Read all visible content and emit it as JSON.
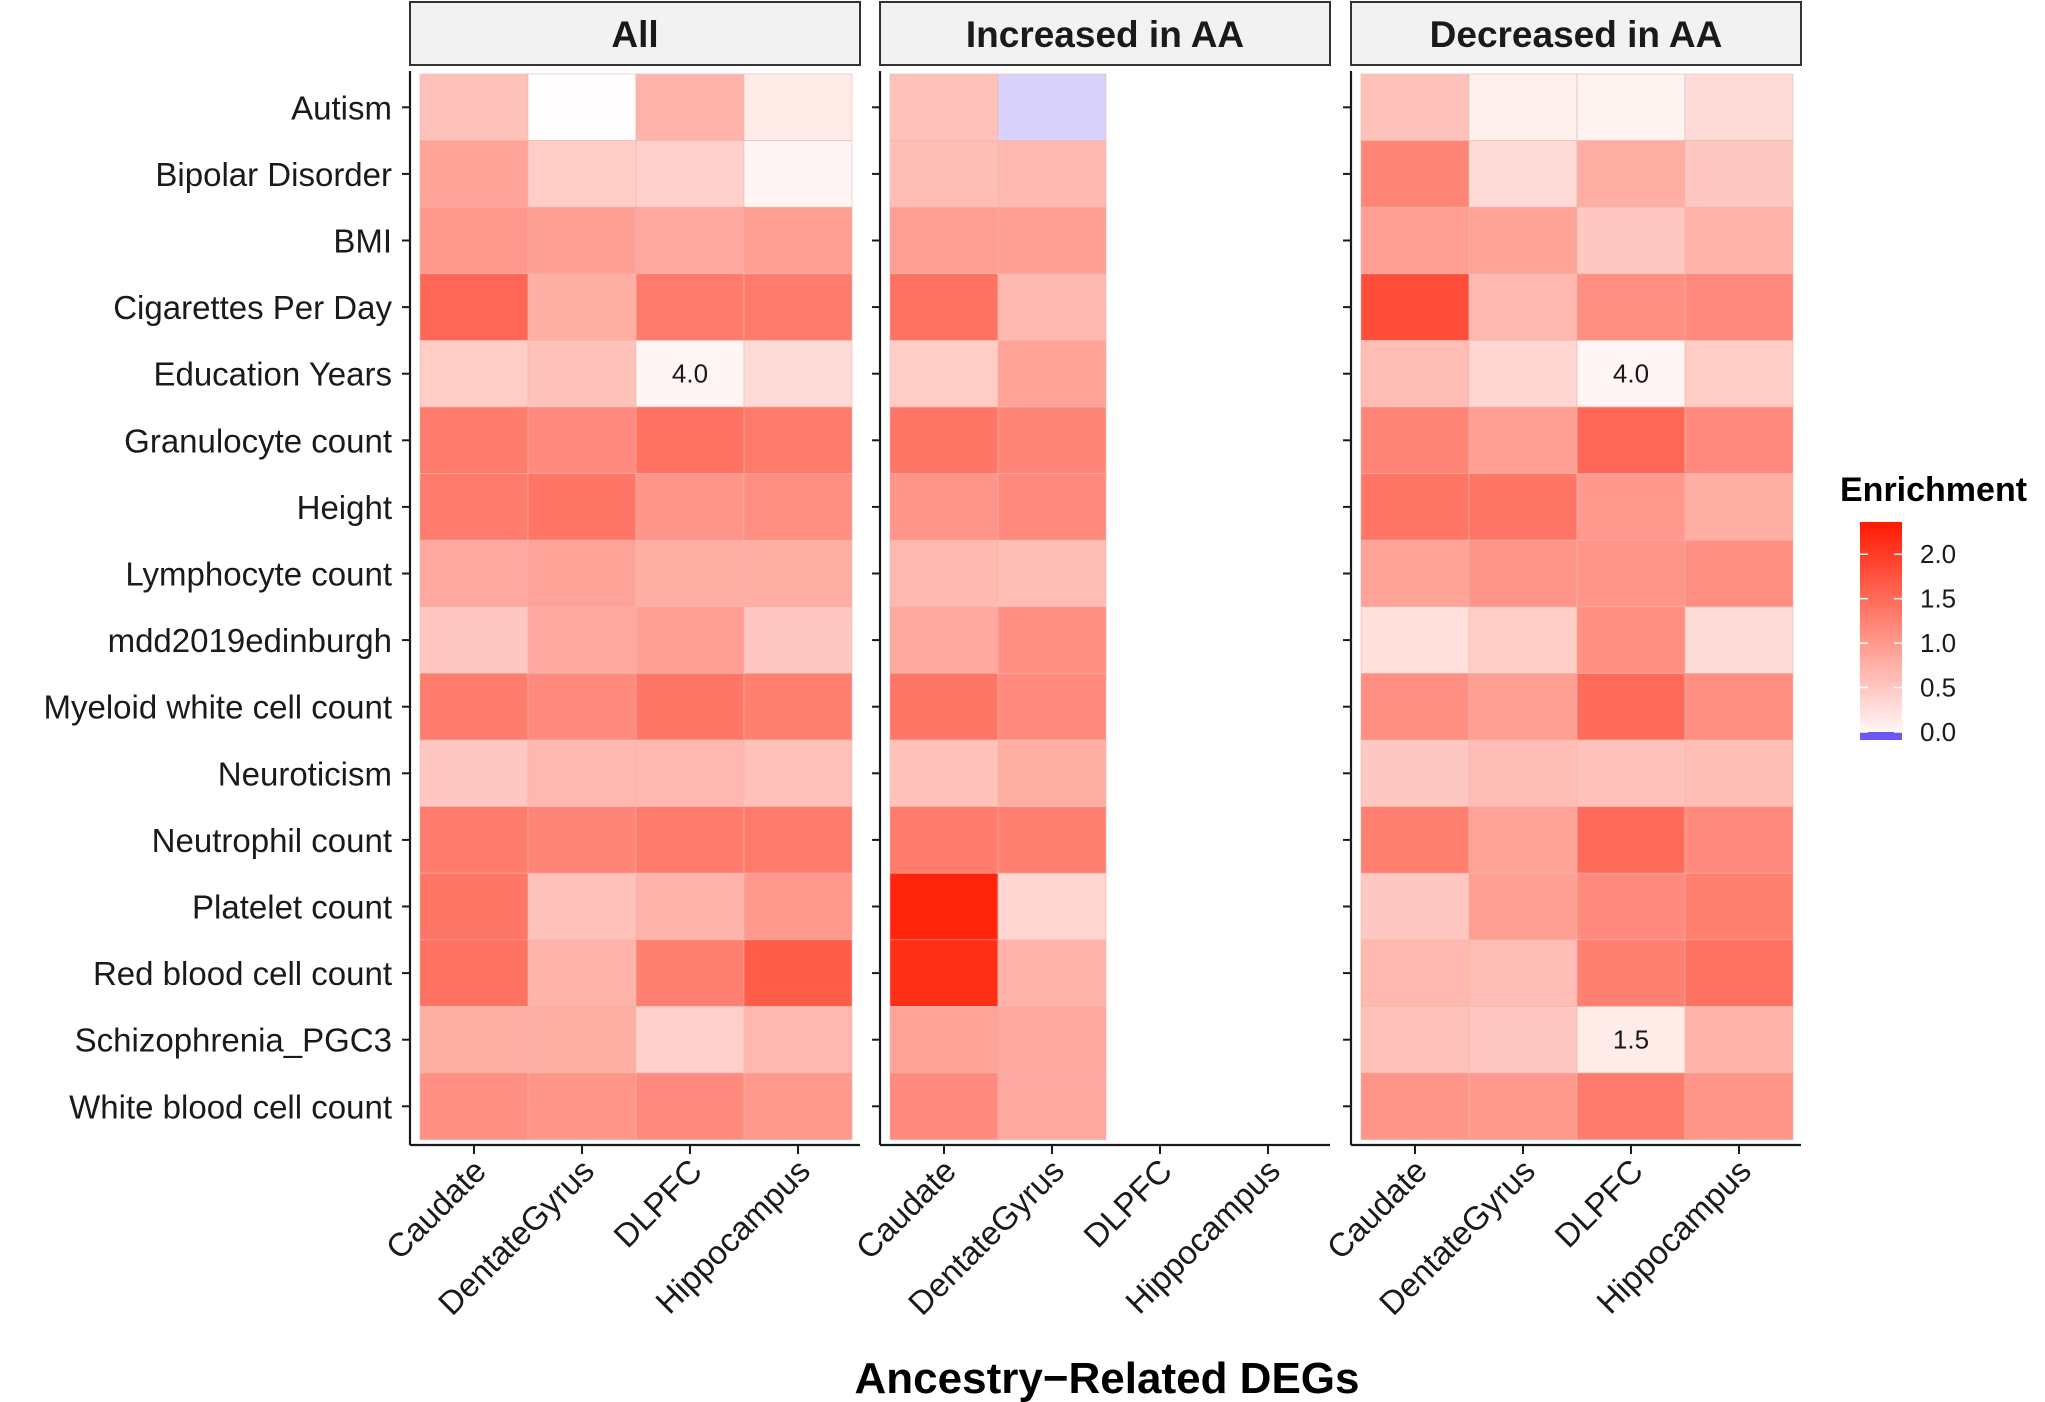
{
  "chart_data": {
    "type": "heatmap",
    "xlabel": "Ancestry−Related DEGs",
    "ylabel": "",
    "legend": {
      "title": "Enrichment",
      "ticks": [
        "2.0",
        "1.5",
        "1.0",
        "0.5",
        "0.0"
      ],
      "tick_values": [
        2.0,
        1.5,
        1.0,
        0.5,
        0.0
      ],
      "range": [
        0.0,
        2.25
      ],
      "colors": {
        "low": "#3b1ff5",
        "mid": "#ffffff",
        "high": "#ff1a00"
      }
    },
    "rows": [
      "Autism",
      "Bipolar Disorder",
      "BMI",
      "Cigarettes Per Day",
      "Education Years",
      "Granulocyte count",
      "Height",
      "Lymphocyte count",
      "mdd2019edinburgh",
      "Myeloid white cell count",
      "Neuroticism",
      "Neutrophil count",
      "Platelet count",
      "Red blood cell count",
      "Schizophrenia_PGC3",
      "White blood cell count"
    ],
    "columns": [
      "Caudate",
      "DentateGyrus",
      "DLPFC",
      "Hippocampus"
    ],
    "panels": [
      {
        "title": "All",
        "values": [
          [
            0.6,
            0.02,
            0.75,
            0.2
          ],
          [
            0.9,
            0.5,
            0.45,
            0.1
          ],
          [
            1.0,
            0.95,
            0.85,
            0.95
          ],
          [
            1.5,
            0.8,
            1.3,
            1.3
          ],
          [
            0.5,
            0.6,
            0.1,
            0.35
          ],
          [
            1.3,
            1.15,
            1.4,
            1.3
          ],
          [
            1.3,
            1.35,
            1.05,
            1.1
          ],
          [
            0.85,
            0.9,
            0.8,
            0.8
          ],
          [
            0.55,
            0.85,
            0.95,
            0.55
          ],
          [
            1.3,
            1.15,
            1.35,
            1.25
          ],
          [
            0.55,
            0.7,
            0.7,
            0.6
          ],
          [
            1.3,
            1.2,
            1.3,
            1.3
          ],
          [
            1.35,
            0.6,
            0.75,
            1.0
          ],
          [
            1.4,
            0.75,
            1.25,
            1.6
          ],
          [
            0.8,
            0.8,
            0.45,
            0.7
          ],
          [
            1.1,
            1.05,
            1.15,
            1.0
          ]
        ],
        "annotations": [
          {
            "row": 4,
            "col": 2,
            "text": "4.0"
          }
        ]
      },
      {
        "title": "Increased in AA",
        "values": [
          [
            0.6,
            -0.2,
            null,
            null
          ],
          [
            0.65,
            0.7,
            null,
            null
          ],
          [
            0.95,
            0.95,
            null,
            null
          ],
          [
            1.4,
            0.7,
            null,
            null
          ],
          [
            0.5,
            0.9,
            null,
            null
          ],
          [
            1.35,
            1.2,
            null,
            null
          ],
          [
            1.05,
            1.15,
            null,
            null
          ],
          [
            0.7,
            0.65,
            null,
            null
          ],
          [
            0.85,
            1.1,
            null,
            null
          ],
          [
            1.35,
            1.15,
            null,
            null
          ],
          [
            0.6,
            0.8,
            null,
            null
          ],
          [
            1.3,
            1.25,
            null,
            null
          ],
          [
            2.15,
            0.4,
            null,
            null
          ],
          [
            2.05,
            0.75,
            null,
            null
          ],
          [
            0.9,
            0.85,
            null,
            null
          ],
          [
            1.15,
            0.85,
            null,
            null
          ]
        ],
        "annotations": []
      },
      {
        "title": "Decreased in AA",
        "values": [
          [
            0.6,
            0.15,
            0.12,
            0.35
          ],
          [
            1.2,
            0.35,
            0.8,
            0.55
          ],
          [
            0.95,
            0.9,
            0.55,
            0.75
          ],
          [
            1.75,
            0.7,
            1.1,
            1.15
          ],
          [
            0.65,
            0.4,
            0.1,
            0.5
          ],
          [
            1.2,
            0.95,
            1.5,
            1.15
          ],
          [
            1.35,
            1.35,
            1.0,
            0.8
          ],
          [
            0.9,
            1.05,
            1.05,
            1.1
          ],
          [
            0.3,
            0.5,
            1.1,
            0.35
          ],
          [
            1.1,
            0.95,
            1.45,
            1.1
          ],
          [
            0.55,
            0.65,
            0.6,
            0.65
          ],
          [
            1.25,
            0.9,
            1.45,
            1.15
          ],
          [
            0.55,
            0.95,
            1.15,
            1.25
          ],
          [
            0.7,
            0.65,
            1.25,
            1.4
          ],
          [
            0.6,
            0.55,
            0.2,
            0.75
          ],
          [
            1.05,
            1.0,
            1.3,
            1.05
          ]
        ],
        "annotations": [
          {
            "row": 4,
            "col": 2,
            "text": "4.0"
          },
          {
            "row": 14,
            "col": 2,
            "text": "1.5"
          }
        ]
      }
    ]
  }
}
